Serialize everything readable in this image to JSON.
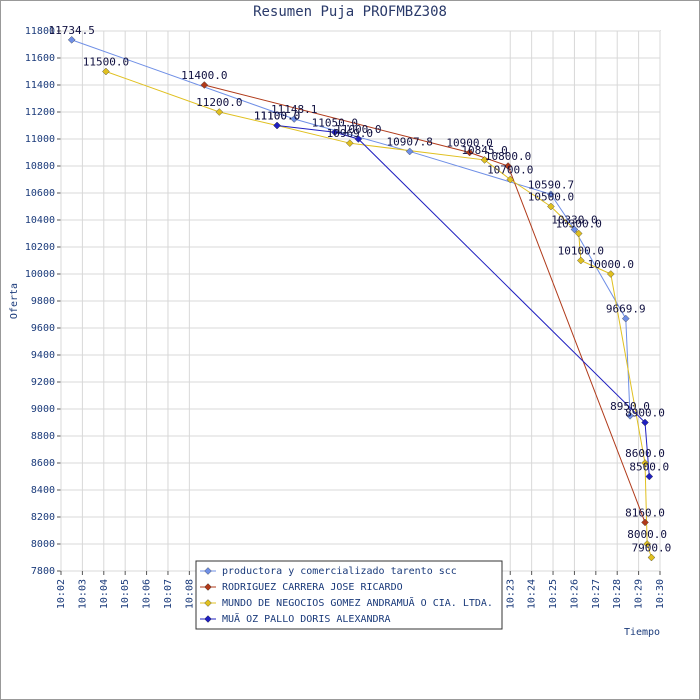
{
  "chart_data": {
    "type": "line",
    "title": "Resumen Puja PROFMBZ308",
    "xlabel": "Tiempo",
    "ylabel": "Oferta",
    "xlim": [
      602,
      630
    ],
    "xticks": [
      {
        "value": 602,
        "label": "10:02"
      },
      {
        "value": 603,
        "label": "10:03"
      },
      {
        "value": 604,
        "label": "10:04"
      },
      {
        "value": 605,
        "label": "10:05"
      },
      {
        "value": 606,
        "label": "10:06"
      },
      {
        "value": 607,
        "label": "10:07"
      },
      {
        "value": 608,
        "label": "10:08"
      },
      {
        "value": 623,
        "label": "10:23"
      },
      {
        "value": 624,
        "label": "10:24"
      },
      {
        "value": 625,
        "label": "10:25"
      },
      {
        "value": 626,
        "label": "10:26"
      },
      {
        "value": 627,
        "label": "10:27"
      },
      {
        "value": 628,
        "label": "10:28"
      },
      {
        "value": 629,
        "label": "10:29"
      },
      {
        "value": 630,
        "label": "10:30"
      }
    ],
    "ylim": [
      7800,
      11800
    ],
    "yticks": [
      7800,
      8000,
      8200,
      8400,
      8600,
      8800,
      9000,
      9200,
      9400,
      9600,
      9800,
      10000,
      10200,
      10400,
      10600,
      10800,
      11000,
      11200,
      11400,
      11600,
      11800
    ],
    "grid": true,
    "legend_position": "bottom",
    "series": [
      {
        "name": "productora y comercializado tarento scc",
        "color": "#6f8fe6",
        "x": [
          602.5,
          612.9,
          618.3,
          624.9,
          626.0,
          628.4,
          628.6
        ],
        "values": [
          11734.5,
          11148.1,
          10907.8,
          10590.7,
          10330,
          9669.9,
          8950
        ],
        "value_labels": [
          "11734.5",
          "11148.1",
          "10907.8",
          "10590.7",
          "10330.0",
          "9669.9",
          "8950.0"
        ]
      },
      {
        "name": "RODRIGUEZ CARRERA JOSE RICARDO",
        "color": "#b03a1a",
        "x": [
          608.7,
          621.1,
          622.9,
          629.3
        ],
        "values": [
          11400,
          10900,
          10800,
          8160
        ],
        "value_labels": [
          "11400.0",
          "10900.0",
          "10800.0",
          "8160.0"
        ]
      },
      {
        "name": "MUNDO DE NEGOCIOS GOMEZ ANDRAMUÃ O CIA. LTDA.",
        "color": "#e0c020",
        "x": [
          604.1,
          609.4,
          612.1,
          615.5,
          621.8,
          623.0,
          624.9,
          626.2,
          626.3,
          627.7,
          629.3,
          629.4,
          629.6
        ],
        "values": [
          11500,
          11200,
          11100,
          10969,
          10845,
          10700,
          10500,
          10300,
          10100,
          10000,
          8600,
          8000,
          7900
        ],
        "value_labels": [
          "11500.0",
          "11200.0",
          "11100.0",
          "10969.0",
          "10845.0",
          "10700.0",
          "10500.0",
          "10300.0",
          "10100.0",
          "10000.0",
          "8600.0",
          "8000.0",
          "7900.0"
        ]
      },
      {
        "name": "MUÃ OZ PALLO DORIS ALEXANDRA",
        "color": "#2020c0",
        "x": [
          612.1,
          614.8,
          615.9,
          629.3,
          629.5
        ],
        "values": [
          11100,
          11050,
          11000,
          8900,
          8500
        ],
        "value_labels": [
          "11100.0",
          "11050.0",
          "11000.0",
          "8900.0",
          "8500.0"
        ]
      }
    ]
  }
}
